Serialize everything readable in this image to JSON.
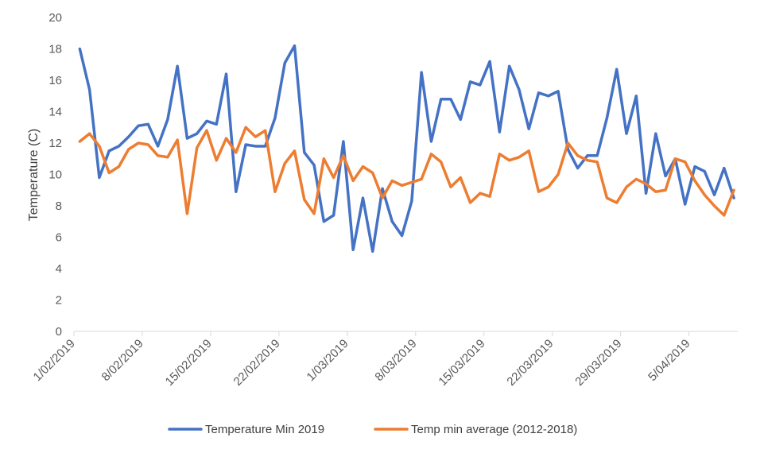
{
  "chart_data": {
    "type": "line",
    "title": "",
    "xlabel": "",
    "ylabel": "Temperature (C)",
    "ylim": [
      0,
      20
    ],
    "y_ticks": [
      0,
      2,
      4,
      6,
      8,
      10,
      12,
      14,
      16,
      18,
      20
    ],
    "grid": false,
    "legend_position": "bottom",
    "x_start": "1/02/2019",
    "x_end": "8/04/2019",
    "x_ticks": [
      "1/02/2019",
      "8/02/2019",
      "15/02/2019",
      "22/02/2019",
      "1/03/2019",
      "8/03/2019",
      "15/03/2019",
      "22/03/2019",
      "29/03/2019",
      "5/04/2019"
    ],
    "series": [
      {
        "name": "Temperature Min 2019",
        "color": "#4472C4",
        "values": [
          18.0,
          15.4,
          9.8,
          11.5,
          11.8,
          12.4,
          13.1,
          13.2,
          11.8,
          13.5,
          16.9,
          12.3,
          12.6,
          13.4,
          13.2,
          16.4,
          8.9,
          11.9,
          11.8,
          11.8,
          13.6,
          17.1,
          18.2,
          11.4,
          10.6,
          7.0,
          7.4,
          12.1,
          5.2,
          8.5,
          5.1,
          9.1,
          7.0,
          6.1,
          8.3,
          16.5,
          12.1,
          14.8,
          14.8,
          13.5,
          15.9,
          15.7,
          17.2,
          12.7,
          16.9,
          15.4,
          12.9,
          15.2,
          15.0,
          15.3,
          11.6,
          10.4,
          11.2,
          11.2,
          13.6,
          16.7,
          12.6,
          15.0,
          8.8,
          12.6,
          9.9,
          11.0,
          8.1,
          10.5,
          10.2,
          8.7,
          10.4,
          8.5
        ],
        "x_index": [
          0,
          1,
          2,
          3,
          4,
          5,
          6,
          7,
          8,
          9,
          10,
          11,
          12,
          13,
          14,
          15,
          16,
          17,
          18,
          19,
          20,
          21,
          22,
          23,
          24,
          25,
          26,
          27,
          28,
          29,
          30,
          31,
          32,
          33,
          34,
          35,
          36,
          37,
          38,
          39,
          40,
          41,
          42,
          43,
          44,
          45,
          46,
          47,
          48,
          49,
          50,
          51,
          52,
          53,
          54,
          55,
          56,
          57,
          58,
          59,
          60,
          61,
          62,
          63,
          64,
          65,
          66,
          67
        ]
      },
      {
        "name": "Temp min average (2012-2018)",
        "color": "#ED7D31",
        "values": [
          12.1,
          12.6,
          11.8,
          10.1,
          10.5,
          11.6,
          12.0,
          11.9,
          11.2,
          11.1,
          12.2,
          7.5,
          11.7,
          12.8,
          10.9,
          12.3,
          11.4,
          13.0,
          12.4,
          12.8,
          8.9,
          10.7,
          11.5,
          8.4,
          7.5,
          11.0,
          9.8,
          11.2,
          9.6,
          10.5,
          10.1,
          8.5,
          9.6,
          9.3,
          9.5,
          9.7,
          11.3,
          10.8,
          9.2,
          9.8,
          8.2,
          8.8,
          8.6,
          11.3,
          10.9,
          11.1,
          11.5,
          8.9,
          9.2,
          10.0,
          12.0,
          11.2,
          10.9,
          10.8,
          8.5,
          8.2,
          9.2,
          9.7,
          9.4,
          8.9,
          9.0,
          11.0,
          10.8,
          9.6,
          8.7,
          8.0,
          7.4,
          9.0
        ],
        "x_index": [
          0,
          1,
          2,
          3,
          4,
          5,
          6,
          7,
          8,
          9,
          10,
          11,
          12,
          13,
          14,
          15,
          16,
          17,
          18,
          19,
          20,
          21,
          22,
          23,
          24,
          25,
          26,
          27,
          28,
          29,
          30,
          31,
          32,
          33,
          34,
          35,
          36,
          37,
          38,
          39,
          40,
          41,
          42,
          43,
          44,
          45,
          46,
          47,
          48,
          49,
          50,
          51,
          52,
          53,
          54,
          55,
          56,
          57,
          58,
          59,
          60,
          61,
          62,
          63,
          64,
          65,
          66,
          67
        ]
      }
    ]
  }
}
